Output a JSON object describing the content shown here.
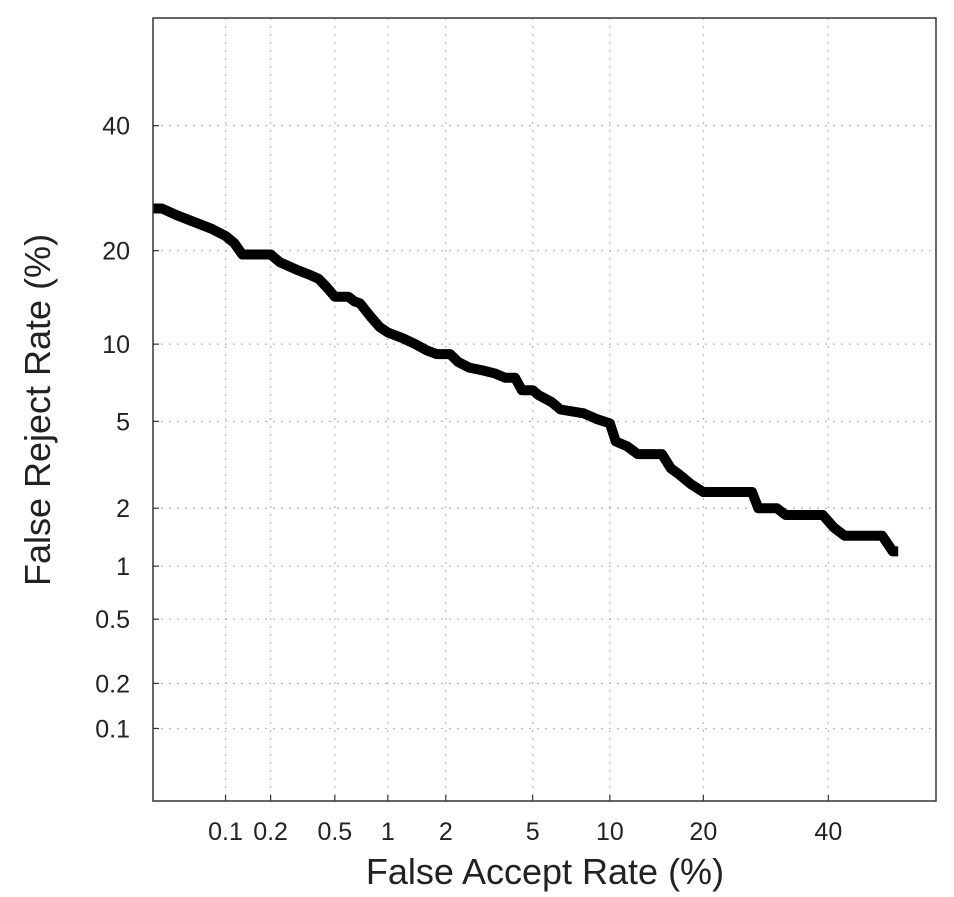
{
  "chart_data": {
    "type": "line",
    "title": "",
    "xlabel": "False Accept Rate (%)",
    "ylabel": "False Reject Rate (%)",
    "x_scale": "probit",
    "y_scale": "probit",
    "xlim": [
      0.03,
      60
    ],
    "ylim": [
      0.03,
      60
    ],
    "grid": true,
    "x_ticks": [
      0.1,
      0.2,
      0.5,
      1,
      2,
      5,
      10,
      20,
      40
    ],
    "x_tick_labels": [
      "0.1",
      "0.2",
      "0.5",
      "1",
      "2",
      "5",
      "10",
      "20",
      "40"
    ],
    "y_ticks": [
      0.1,
      0.2,
      0.5,
      1,
      2,
      5,
      10,
      20,
      40
    ],
    "y_tick_labels": [
      "0.1",
      "0.2",
      "0.5",
      "1",
      "2",
      "5",
      "10",
      "20",
      "40"
    ],
    "series": [
      {
        "color": "#000000",
        "points": [
          [
            0.03,
            26
          ],
          [
            0.035,
            26
          ],
          [
            0.045,
            25
          ],
          [
            0.06,
            24
          ],
          [
            0.08,
            23
          ],
          [
            0.1,
            22
          ],
          [
            0.115,
            21
          ],
          [
            0.13,
            19.5
          ],
          [
            0.2,
            19.5
          ],
          [
            0.23,
            18.5
          ],
          [
            0.3,
            17.5
          ],
          [
            0.35,
            17
          ],
          [
            0.4,
            16.5
          ],
          [
            0.45,
            15.5
          ],
          [
            0.5,
            14.5
          ],
          [
            0.6,
            14.5
          ],
          [
            0.65,
            14
          ],
          [
            0.7,
            13.8
          ],
          [
            0.8,
            12.5
          ],
          [
            0.9,
            11.5
          ],
          [
            1.0,
            11
          ],
          [
            1.2,
            10.5
          ],
          [
            1.4,
            10
          ],
          [
            1.6,
            9.5
          ],
          [
            1.8,
            9.2
          ],
          [
            2.1,
            9.2
          ],
          [
            2.3,
            8.6
          ],
          [
            2.6,
            8.2
          ],
          [
            3.0,
            8.0
          ],
          [
            3.4,
            7.8
          ],
          [
            3.8,
            7.5
          ],
          [
            4.2,
            7.5
          ],
          [
            4.5,
            6.7
          ],
          [
            5.0,
            6.7
          ],
          [
            5.3,
            6.4
          ],
          [
            6.0,
            6.0
          ],
          [
            6.5,
            5.6
          ],
          [
            8.0,
            5.4
          ],
          [
            9.0,
            5.1
          ],
          [
            10.0,
            4.9
          ],
          [
            10.5,
            4.1
          ],
          [
            11.5,
            3.9
          ],
          [
            12.5,
            3.6
          ],
          [
            15.0,
            3.6
          ],
          [
            16.0,
            3.1
          ],
          [
            17.0,
            2.9
          ],
          [
            18.5,
            2.6
          ],
          [
            20.0,
            2.4
          ],
          [
            27.0,
            2.4
          ],
          [
            28.0,
            2.0
          ],
          [
            31.0,
            2.0
          ],
          [
            32.5,
            1.85
          ],
          [
            39.0,
            1.85
          ],
          [
            41.0,
            1.6
          ],
          [
            43.0,
            1.45
          ],
          [
            50.0,
            1.45
          ],
          [
            52.0,
            1.2
          ],
          [
            53.0,
            1.2
          ]
        ]
      }
    ]
  }
}
